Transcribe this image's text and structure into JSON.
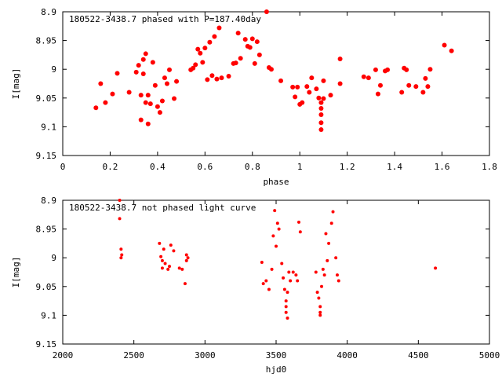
{
  "chart_data": [
    {
      "type": "scatter",
      "title": "180522-3438.7 phased with P=187.40day",
      "xlabel": "phase",
      "ylabel": "I[mag]",
      "xlim": [
        0,
        1.8
      ],
      "ylim": [
        8.9,
        9.15
      ],
      "y_inverted": true,
      "x_ticks": [
        "0",
        "0.2",
        "0.4",
        "0.6",
        "0.8",
        "1",
        "1.2",
        "1.4",
        "1.6",
        "1.8"
      ],
      "y_ticks": [
        "8.9",
        "8.95",
        "9",
        "9.05",
        "9.1",
        "9.15"
      ],
      "marker": "filled-circle",
      "color": "#ff0000",
      "series": [
        {
          "x": [
            0.14,
            0.16,
            0.18,
            0.21,
            0.23,
            0.28,
            0.31,
            0.32,
            0.33,
            0.33,
            0.34,
            0.34,
            0.35,
            0.35,
            0.36,
            0.36,
            0.37,
            0.38,
            0.39,
            0.4,
            0.41,
            0.42,
            0.43,
            0.44,
            0.45,
            0.47,
            0.48,
            0.54,
            0.55,
            0.56,
            0.57,
            0.58,
            0.59,
            0.6,
            0.61,
            0.62,
            0.63,
            0.64,
            0.65,
            0.66,
            0.67,
            0.7,
            0.72,
            0.73,
            0.74,
            0.75,
            0.77,
            0.78,
            0.79,
            0.8,
            0.81,
            0.82,
            0.83,
            0.86,
            0.87,
            0.88,
            0.92,
            0.97,
            0.98,
            0.99,
            1.0,
            1.01,
            1.03,
            1.04,
            1.05,
            1.07,
            1.08,
            1.09,
            1.09,
            1.09,
            1.09,
            1.09,
            1.1,
            1.1,
            1.13,
            1.17,
            1.17,
            1.27,
            1.29,
            1.32,
            1.33,
            1.34,
            1.36,
            1.37,
            1.43,
            1.44,
            1.45,
            1.46,
            1.49,
            1.52,
            1.53,
            1.54,
            1.55,
            1.61,
            1.64
          ],
          "y": [
            9.067,
            9.025,
            9.058,
            9.043,
            9.007,
            9.04,
            9.005,
            8.993,
            9.045,
            9.088,
            8.983,
            9.008,
            8.973,
            9.058,
            9.095,
            9.045,
            9.06,
            8.988,
            9.028,
            9.065,
            9.075,
            9.055,
            9.015,
            9.025,
            9.001,
            9.051,
            9.021,
            9.001,
            8.998,
            8.992,
            8.965,
            8.972,
            8.988,
            8.963,
            9.018,
            8.953,
            9.011,
            8.943,
            9.017,
            8.928,
            9.015,
            9.012,
            8.99,
            8.989,
            8.937,
            8.981,
            8.948,
            8.96,
            8.962,
            8.947,
            8.99,
            8.952,
            8.975,
            8.9,
            8.997,
            9.0,
            9.02,
            9.031,
            9.048,
            9.031,
            9.061,
            9.058,
            9.03,
            9.04,
            9.015,
            9.034,
            9.05,
            9.058,
            9.079,
            9.093,
            9.105,
            9.068,
            9.02,
            9.051,
            9.045,
            9.025,
            8.982,
            9.013,
            9.015,
            9.001,
            9.043,
            9.028,
            9.003,
            9.001,
            9.04,
            8.998,
            9.001,
            9.028,
            9.03,
            9.04,
            9.016,
            9.03,
            9.0,
            8.958,
            8.968
          ]
        }
      ]
    },
    {
      "type": "scatter",
      "title": "180522-3438.7 not phased light curve",
      "xlabel": "hjd0",
      "ylabel": "I[mag]",
      "xlim": [
        2000,
        5000
      ],
      "ylim": [
        8.9,
        9.15
      ],
      "y_inverted": true,
      "x_ticks": [
        "2000",
        "2500",
        "3000",
        "3500",
        "4000",
        "4500",
        "5000"
      ],
      "y_ticks": [
        "8.9",
        "8.95",
        "9",
        "9.05",
        "9.1",
        "9.15"
      ],
      "marker": "small-filled-circle",
      "color": "#ff0000",
      "series": [
        {
          "x": [
            2400,
            2400,
            2410,
            2410,
            2415,
            2680,
            2690,
            2700,
            2700,
            2710,
            2720,
            2740,
            2750,
            2760,
            2780,
            2820,
            2840,
            2860,
            2870,
            2870,
            2880,
            3400,
            3410,
            3430,
            3450,
            3470,
            3480,
            3490,
            3500,
            3510,
            3520,
            3540,
            3550,
            3560,
            3570,
            3570,
            3570,
            3580,
            3580,
            3590,
            3600,
            3620,
            3640,
            3650,
            3660,
            3670,
            3780,
            3790,
            3800,
            3810,
            3810,
            3810,
            3820,
            3830,
            3840,
            3850,
            3860,
            3870,
            3890,
            3900,
            3920,
            3930,
            3940,
            4620
          ],
          "y": [
            8.9,
            8.932,
            8.985,
            9.0,
            8.995,
            8.975,
            8.998,
            9.005,
            9.018,
            8.985,
            9.01,
            9.02,
            9.015,
            8.978,
            8.988,
            9.018,
            9.02,
            9.045,
            9.005,
            8.995,
            9.0,
            9.008,
            9.045,
            9.04,
            9.055,
            9.02,
            8.962,
            8.918,
            8.98,
            8.94,
            8.95,
            9.01,
            9.035,
            9.055,
            9.075,
            9.085,
            9.095,
            9.06,
            9.105,
            9.025,
            9.04,
            9.025,
            9.03,
            9.04,
            8.938,
            8.955,
            9.025,
            9.06,
            9.07,
            9.095,
            9.085,
            9.1,
            9.05,
            9.02,
            9.03,
            8.958,
            9.005,
            8.975,
            8.94,
            8.92,
            9.0,
            9.03,
            9.04,
            9.018
          ]
        }
      ]
    }
  ]
}
